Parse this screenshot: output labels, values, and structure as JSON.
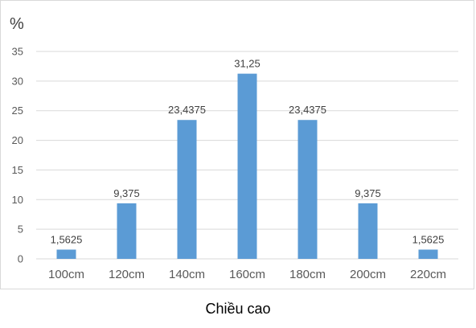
{
  "chart_data": {
    "type": "bar",
    "categories": [
      "100cm",
      "120cm",
      "140cm",
      "160cm",
      "180cm",
      "200cm",
      "220cm"
    ],
    "values": [
      1.5625,
      9.375,
      23.4375,
      31.25,
      23.4375,
      9.375,
      1.5625
    ],
    "data_labels": [
      "1,5625",
      "9,375",
      "23,4375",
      "31,25",
      "23,4375",
      "9,375",
      "1,5625"
    ],
    "xlabel": "Chiều cao",
    "ylabel": "%",
    "ylim": [
      0,
      35
    ],
    "yticks": [
      0,
      5,
      10,
      15,
      20,
      25,
      30,
      35
    ],
    "grid": true,
    "bar_color": "#5b9bd5",
    "grid_color": "#d9d9d9"
  }
}
